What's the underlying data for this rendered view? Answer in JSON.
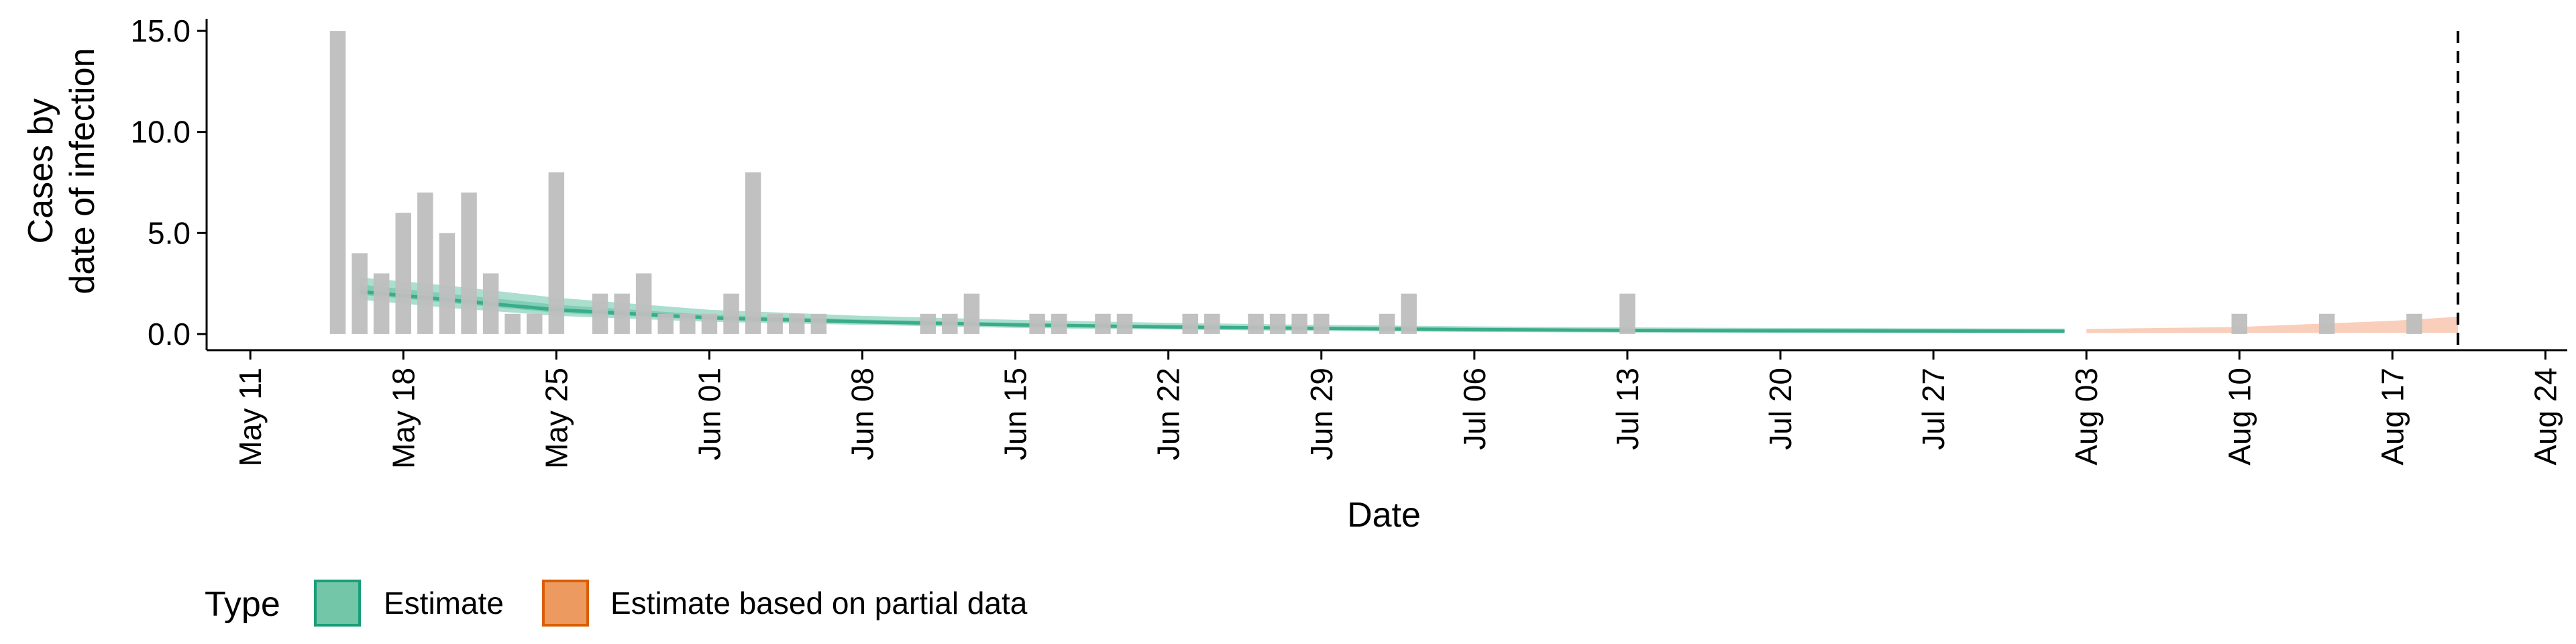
{
  "chart_data": {
    "type": "bar",
    "xlabel": "Date",
    "ylabel_lines": [
      "Cases by",
      "date of infection"
    ],
    "x_range": [
      "2020-05-09",
      "2020-08-25"
    ],
    "ylim": [
      -0.8,
      15.6
    ],
    "y_ticks": [
      0,
      5,
      10,
      15
    ],
    "y_tick_labels": [
      "0.0",
      "5.0",
      "10.0",
      "15.0"
    ],
    "x_ticks": [
      "2020-05-11",
      "2020-05-18",
      "2020-05-25",
      "2020-06-01",
      "2020-06-08",
      "2020-06-15",
      "2020-06-22",
      "2020-06-29",
      "2020-07-06",
      "2020-07-13",
      "2020-07-20",
      "2020-07-27",
      "2020-08-03",
      "2020-08-10",
      "2020-08-17",
      "2020-08-24"
    ],
    "x_tick_labels": [
      "May 11",
      "May 18",
      "May 25",
      "Jun 01",
      "Jun 08",
      "Jun 15",
      "Jun 22",
      "Jun 29",
      "Jul 06",
      "Jul 13",
      "Jul 20",
      "Jul 27",
      "Aug 03",
      "Aug 10",
      "Aug 17",
      "Aug 24"
    ],
    "bars": {
      "color": "#bebebe",
      "dates": [
        "2020-05-15",
        "2020-05-16",
        "2020-05-17",
        "2020-05-18",
        "2020-05-19",
        "2020-05-20",
        "2020-05-21",
        "2020-05-22",
        "2020-05-23",
        "2020-05-24",
        "2020-05-25",
        "2020-05-27",
        "2020-05-28",
        "2020-05-29",
        "2020-05-30",
        "2020-05-31",
        "2020-06-01",
        "2020-06-02",
        "2020-06-03",
        "2020-06-04",
        "2020-06-05",
        "2020-06-06",
        "2020-06-11",
        "2020-06-12",
        "2020-06-13",
        "2020-06-16",
        "2020-06-17",
        "2020-06-19",
        "2020-06-20",
        "2020-06-23",
        "2020-06-24",
        "2020-06-26",
        "2020-06-27",
        "2020-06-28",
        "2020-06-29",
        "2020-07-02",
        "2020-07-03",
        "2020-07-13",
        "2020-08-10",
        "2020-08-14",
        "2020-08-18"
      ],
      "values": [
        15,
        4,
        3,
        6,
        7,
        5,
        7,
        3,
        1,
        1,
        8,
        2,
        2,
        3,
        1,
        1,
        1,
        2,
        8,
        1,
        1,
        1,
        1,
        1,
        2,
        1,
        1,
        1,
        1,
        1,
        1,
        1,
        1,
        1,
        1,
        1,
        2,
        2,
        1,
        1,
        1
      ]
    },
    "series": [
      {
        "name": "Estimate",
        "color": "#1b9e77",
        "fill": "#66c2a5",
        "dates": [
          "2020-05-16",
          "2020-05-20",
          "2020-05-25",
          "2020-06-01",
          "2020-06-08",
          "2020-06-15",
          "2020-06-22",
          "2020-06-29",
          "2020-07-06",
          "2020-07-13",
          "2020-07-20",
          "2020-07-27",
          "2020-08-02"
        ],
        "median": [
          2.1,
          1.7,
          1.2,
          0.8,
          0.6,
          0.45,
          0.35,
          0.28,
          0.22,
          0.18,
          0.16,
          0.15,
          0.14
        ],
        "lower_90": [
          1.7,
          1.3,
          0.9,
          0.6,
          0.45,
          0.3,
          0.22,
          0.15,
          0.1,
          0.07,
          0.05,
          0.04,
          0.04
        ],
        "upper_90": [
          2.8,
          2.4,
          1.8,
          1.2,
          0.9,
          0.7,
          0.55,
          0.45,
          0.38,
          0.33,
          0.3,
          0.28,
          0.27
        ],
        "lower_50": [
          1.95,
          1.55,
          1.05,
          0.7,
          0.52,
          0.38,
          0.28,
          0.21,
          0.16,
          0.12,
          0.1,
          0.09,
          0.09
        ],
        "upper_50": [
          2.45,
          2.0,
          1.45,
          0.95,
          0.72,
          0.55,
          0.43,
          0.35,
          0.29,
          0.25,
          0.23,
          0.22,
          0.21
        ]
      },
      {
        "name": "Estimate based on partial data",
        "color": "#d95f02",
        "fill": "#f4a582",
        "dates": [
          "2020-08-03",
          "2020-08-10",
          "2020-08-17",
          "2020-08-20"
        ],
        "lower_90": [
          0.05,
          0.05,
          0.06,
          0.06
        ],
        "upper_90": [
          0.25,
          0.35,
          0.65,
          0.85
        ]
      }
    ],
    "vline_date": "2020-08-20",
    "legend": {
      "title": "Type",
      "position": "bottom",
      "items": [
        {
          "label": "Estimate",
          "fill": "#74c6a8",
          "stroke": "#1b9e77"
        },
        {
          "label": "Estimate based on partial data",
          "fill": "#ec9a5f",
          "stroke": "#d95f02"
        }
      ]
    }
  }
}
